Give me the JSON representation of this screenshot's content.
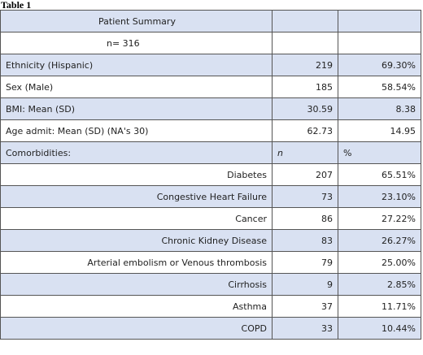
{
  "caption": "Table 1",
  "header": {
    "title": "Patient Summary",
    "n": "n= 316"
  },
  "summary_rows": [
    {
      "label": "Ethnicity (Hispanic)",
      "v1": "219",
      "v2": "69.30%"
    },
    {
      "label": "Sex (Male)",
      "v1": "185",
      "v2": "58.54%"
    },
    {
      "label": "BMI: Mean (SD)",
      "v1": "30.59",
      "v2": "8.38"
    },
    {
      "label": "Age admit: Mean (SD) (NA's 30)",
      "v1": "62.73",
      "v2": "14.95"
    }
  ],
  "comorbidities": {
    "label": "Comorbidities:",
    "col_n": "n",
    "col_pct": "%"
  },
  "comorbidity_rows": [
    {
      "label": "Diabetes",
      "n": "207",
      "pct": "65.51%"
    },
    {
      "label": "Congestive Heart Failure",
      "n": "73",
      "pct": "23.10%"
    },
    {
      "label": "Cancer",
      "n": "86",
      "pct": "27.22%"
    },
    {
      "label": "Chronic Kidney Disease",
      "n": "83",
      "pct": "26.27%"
    },
    {
      "label": "Arterial embolism or Venous thrombosis",
      "n": "79",
      "pct": "25.00%"
    },
    {
      "label": "Cirrhosis",
      "n": "9",
      "pct": "2.85%"
    },
    {
      "label": "Asthma",
      "n": "37",
      "pct": "11.71%"
    },
    {
      "label": "COPD",
      "n": "33",
      "pct": "10.44%"
    }
  ],
  "colors": {
    "shade": "#d9e1f2",
    "border": "#555555"
  }
}
